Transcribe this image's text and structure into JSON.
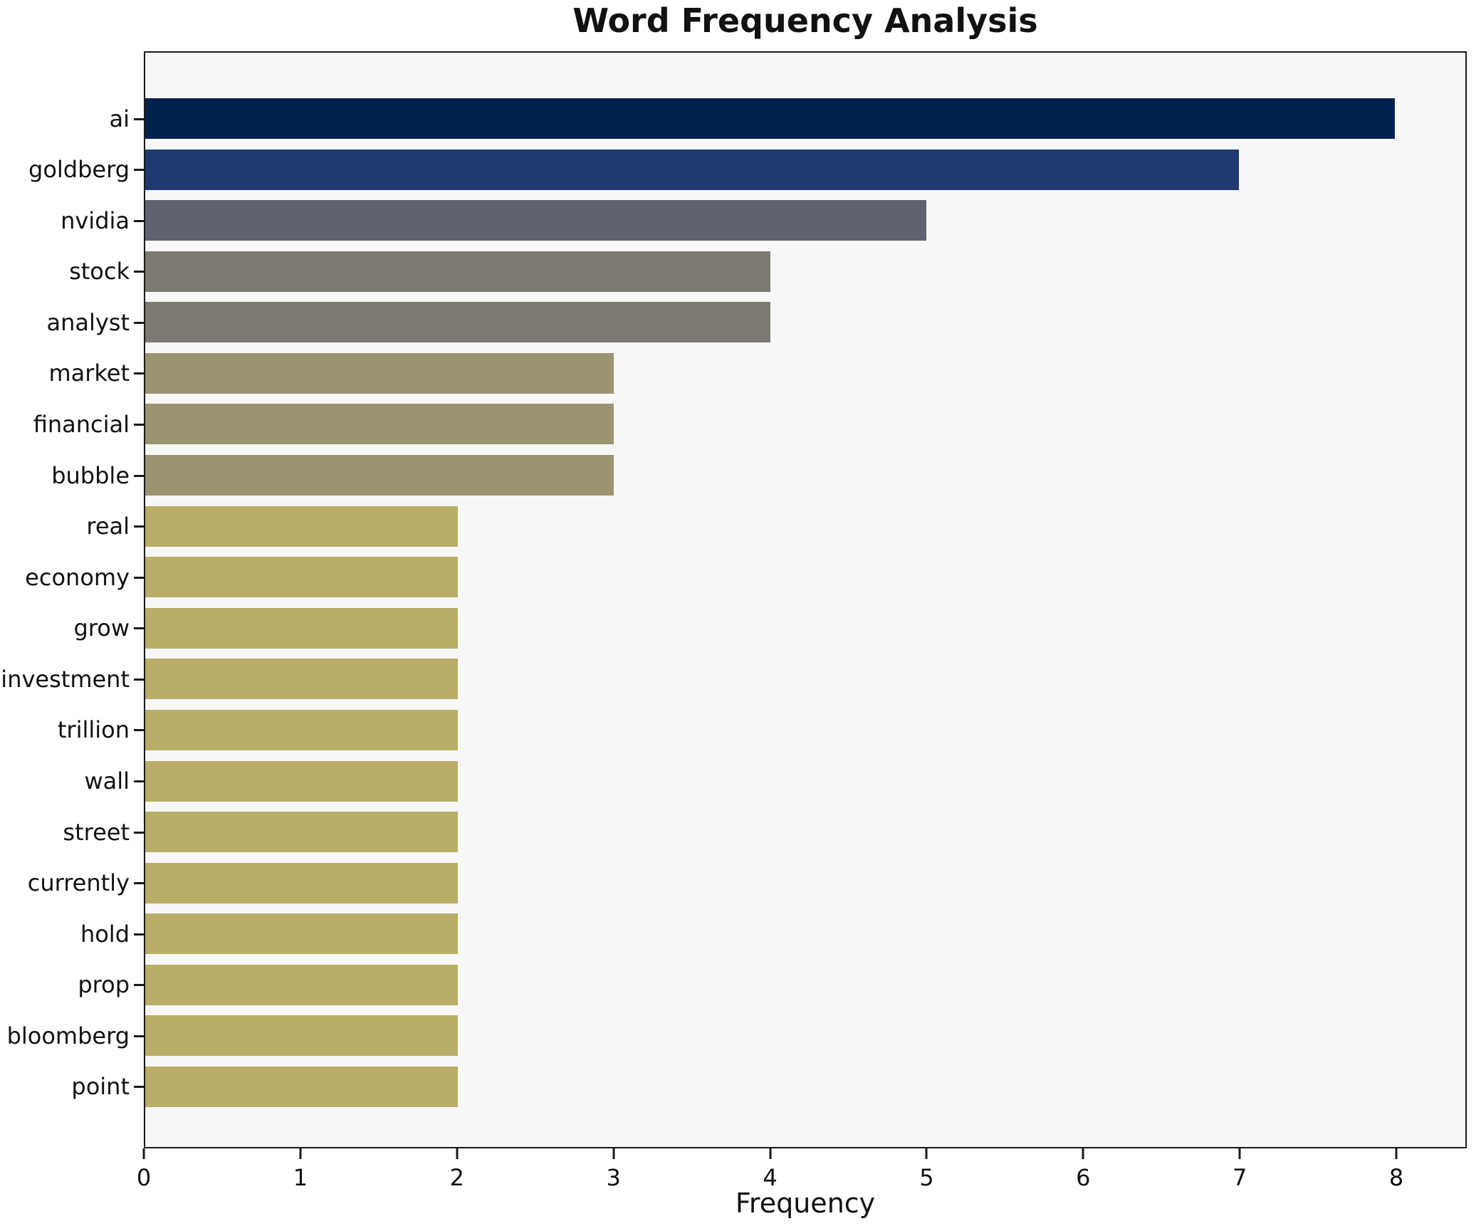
{
  "chart_data": {
    "type": "bar",
    "orientation": "horizontal",
    "title": "Word Frequency Analysis",
    "xlabel": "Frequency",
    "ylabel": "",
    "categories": [
      "ai",
      "goldberg",
      "nvidia",
      "stock",
      "analyst",
      "market",
      "financial",
      "bubble",
      "real",
      "economy",
      "grow",
      "investment",
      "trillion",
      "wall",
      "street",
      "currently",
      "hold",
      "prop",
      "bloomberg",
      "point"
    ],
    "values": [
      8,
      7,
      5,
      4,
      4,
      3,
      3,
      3,
      2,
      2,
      2,
      2,
      2,
      2,
      2,
      2,
      2,
      2,
      2,
      2
    ],
    "bar_colors": [
      "#02224e",
      "#1e3a6e",
      "#5f6370",
      "#7c7a73",
      "#7c7a73",
      "#9a9470",
      "#9a9470",
      "#9a9470",
      "#b9ad68",
      "#b9ad68",
      "#b9ad68",
      "#b9ad68",
      "#b9ad68",
      "#b9ad68",
      "#b9ad68",
      "#b9ad68",
      "#b9ad68",
      "#b9ad68",
      "#b9ad68",
      "#b9ad68"
    ],
    "xticks": [
      0,
      1,
      2,
      3,
      4,
      5,
      6,
      7,
      8
    ],
    "xlim": [
      0,
      8.45
    ],
    "grid": false,
    "legend": "none",
    "plot_background": "#f7f7f7",
    "figure_background": "#ffffff",
    "spine_color": "#1a1a1a"
  }
}
